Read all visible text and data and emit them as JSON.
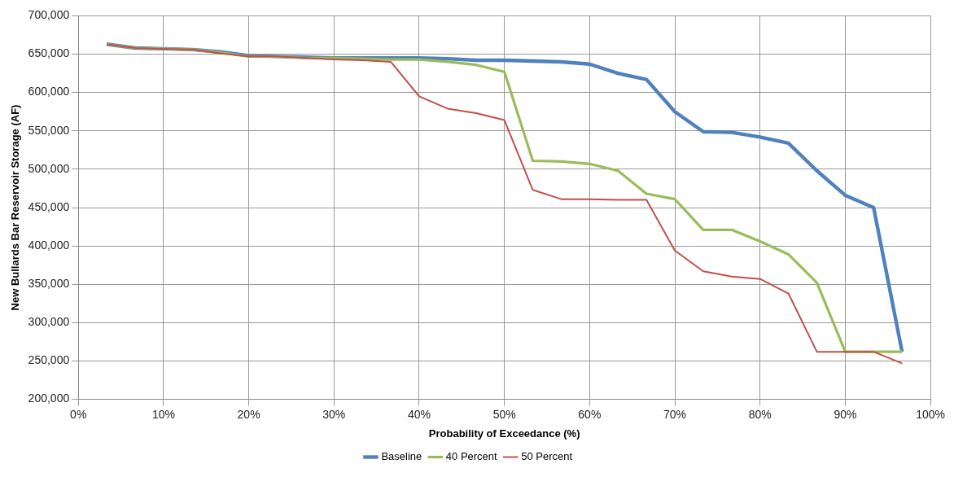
{
  "chart_data": {
    "type": "line",
    "xlabel": "Probability of Exceedance (%)",
    "ylabel": "New Bullards Bar Reservoir Storage (AF)",
    "x": [
      3.33,
      6.67,
      10,
      13.33,
      16.67,
      20,
      23.33,
      26.67,
      30,
      33.33,
      36.67,
      40,
      43.33,
      46.67,
      50,
      53.33,
      56.67,
      60,
      63.33,
      66.67,
      70,
      73.33,
      76.67,
      80,
      83.33,
      86.67,
      90,
      93.33,
      96.67
    ],
    "series": [
      {
        "name": "Baseline",
        "color": "#4f81bd",
        "values": [
          663000,
          658000,
          657000,
          656000,
          653000,
          648000,
          647000,
          646000,
          645000,
          645000,
          645000,
          645000,
          644000,
          642000,
          642000,
          641000,
          640000,
          637000,
          625000,
          617000,
          575000,
          549000,
          548000,
          542000,
          534000,
          498000,
          466000,
          450000,
          262000
        ]
      },
      {
        "name": "40 Percent",
        "color": "#9bbb59",
        "values": [
          663000,
          658000,
          657000,
          656000,
          652000,
          647000,
          647000,
          645000,
          645000,
          644000,
          643000,
          643000,
          640000,
          636000,
          627000,
          511000,
          510000,
          507000,
          498000,
          468000,
          461000,
          421000,
          421000,
          406000,
          389000,
          352000,
          262000,
          262000,
          262000
        ]
      },
      {
        "name": "50 Percent",
        "color": "#c0504d",
        "values": [
          663000,
          658000,
          657000,
          656000,
          651000,
          647000,
          647000,
          645000,
          643000,
          642000,
          640000,
          595000,
          579000,
          573000,
          564000,
          473000,
          461000,
          461000,
          460000,
          460000,
          394000,
          367000,
          360000,
          357000,
          338000,
          262000,
          262000,
          262000,
          247000
        ]
      }
    ],
    "xlim": [
      0,
      100
    ],
    "xticks": [
      {
        "value": 0,
        "label": "0%"
      },
      {
        "value": 10,
        "label": "10%"
      },
      {
        "value": 20,
        "label": "20%"
      },
      {
        "value": 30,
        "label": "30%"
      },
      {
        "value": 40,
        "label": "40%"
      },
      {
        "value": 50,
        "label": "50%"
      },
      {
        "value": 60,
        "label": "60%"
      },
      {
        "value": 70,
        "label": "70%"
      },
      {
        "value": 80,
        "label": "80%"
      },
      {
        "value": 90,
        "label": "90%"
      },
      {
        "value": 100,
        "label": "100%"
      }
    ],
    "ylim": [
      200000,
      700000
    ],
    "yticks": [
      {
        "value": 200000,
        "label": "200,000"
      },
      {
        "value": 250000,
        "label": "250,000"
      },
      {
        "value": 300000,
        "label": "300,000"
      },
      {
        "value": 350000,
        "label": "350,000"
      },
      {
        "value": 400000,
        "label": "400,000"
      },
      {
        "value": 450000,
        "label": "450,000"
      },
      {
        "value": 500000,
        "label": "500,000"
      },
      {
        "value": 550000,
        "label": "550,000"
      },
      {
        "value": 600000,
        "label": "600,000"
      },
      {
        "value": 650000,
        "label": "650,000"
      },
      {
        "value": 700000,
        "label": "700,000"
      }
    ],
    "grid": true,
    "legend": "bottom",
    "marker": "none",
    "line_style": "solid"
  }
}
